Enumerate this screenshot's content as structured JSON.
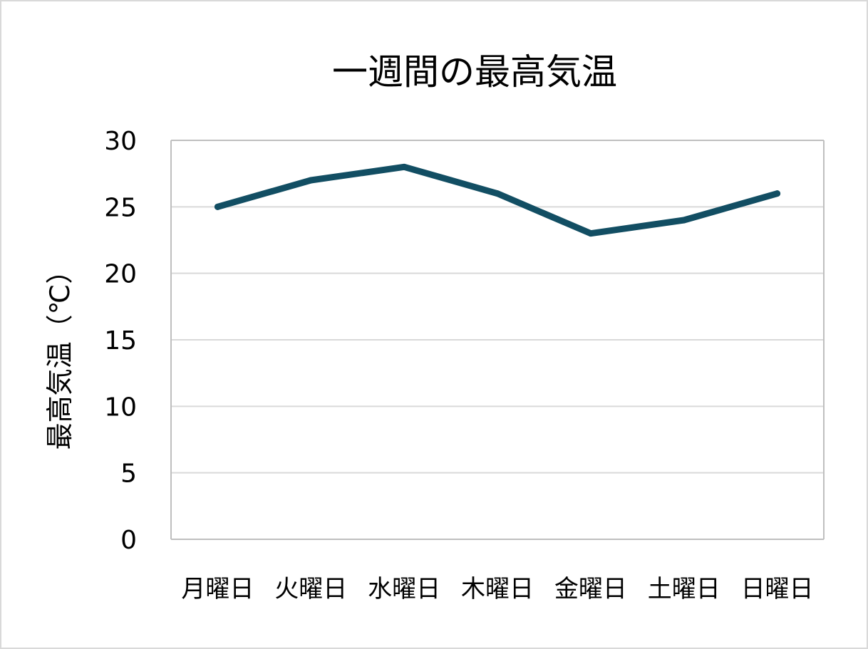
{
  "chart_data": {
    "type": "line",
    "title": "一週間の最高気温",
    "xlabel": "",
    "ylabel": "最高気温（℃）",
    "categories": [
      "月曜日",
      "火曜日",
      "水曜日",
      "木曜日",
      "金曜日",
      "土曜日",
      "日曜日"
    ],
    "series": [
      {
        "values": [
          25,
          27,
          28,
          26,
          23,
          24,
          26
        ]
      }
    ],
    "ylim": [
      0,
      30
    ],
    "yticks": [
      0,
      5,
      10,
      15,
      20,
      25,
      30
    ],
    "grid": true,
    "legend": "none",
    "line_color": "#124e63",
    "grid_color": "#d9d9d9",
    "axis_color": "#bfbfbf"
  }
}
